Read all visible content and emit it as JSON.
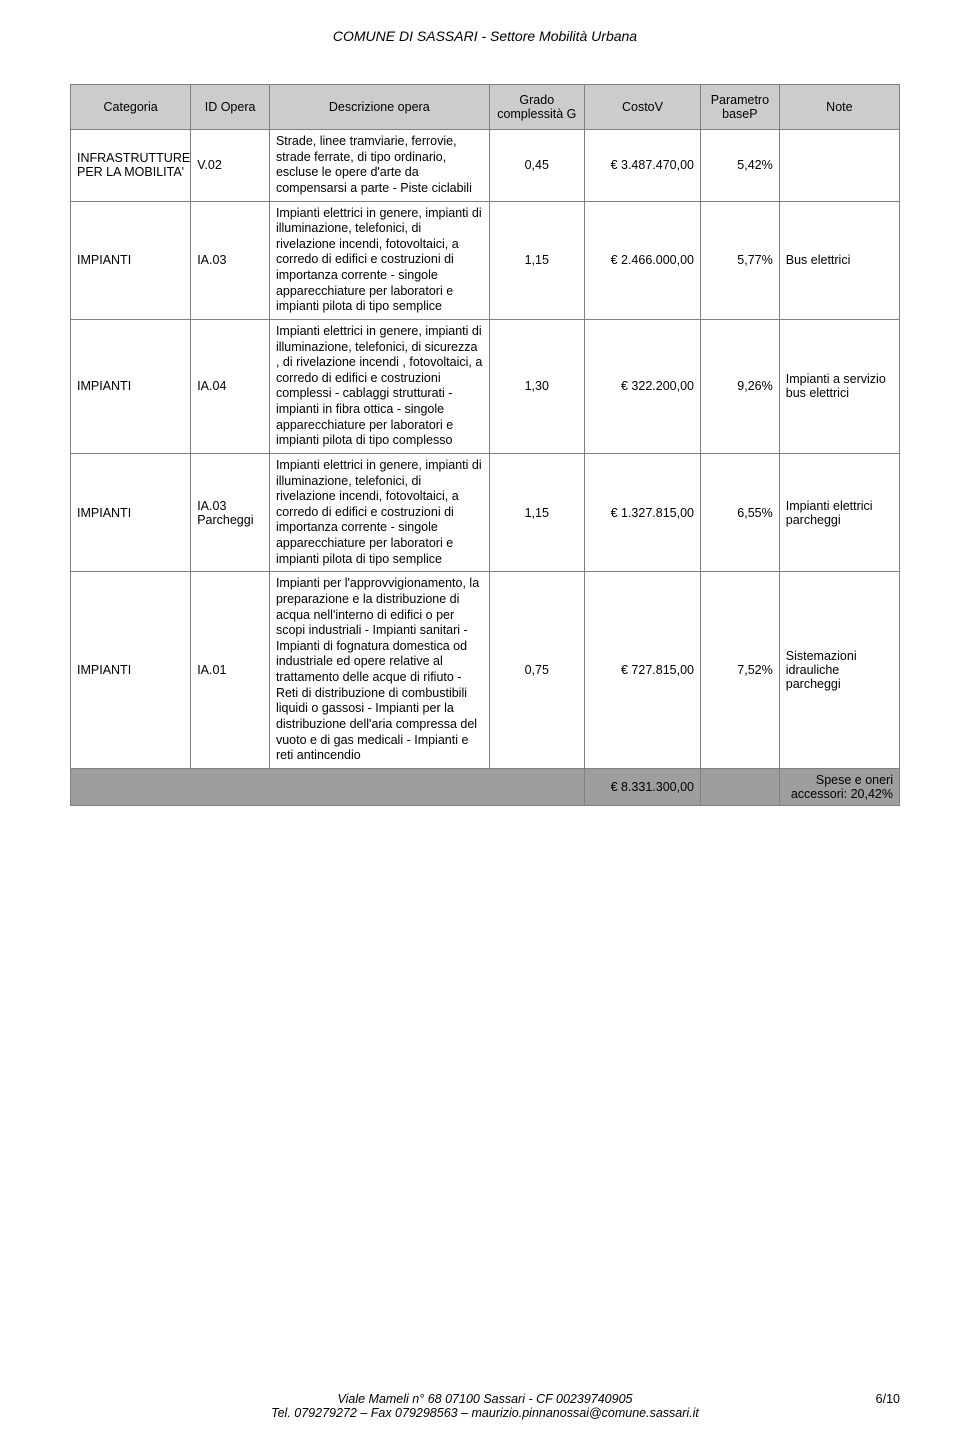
{
  "header": {
    "title": "COMUNE DI SASSARI - Settore Mobilità Urbana"
  },
  "table": {
    "columns": [
      "Categoria",
      "ID Opera",
      "Descrizione opera",
      "Grado complessità G",
      "CostoV",
      "Parametro baseP",
      "Note"
    ],
    "rows": [
      {
        "categoria": "INFRASTRUTTURE PER LA MOBILITA'",
        "id": "V.02",
        "desc": "Strade, linee tramviarie, ferrovie, strade ferrate, di tipo ordinario, escluse le opere d'arte da compensarsi a parte - Piste ciclabili",
        "g": "0,45",
        "costo": "€ 3.487.470,00",
        "basep": "5,42%",
        "note": ""
      },
      {
        "categoria": "IMPIANTI",
        "id": "IA.03",
        "desc": "Impianti elettrici in genere, impianti di illuminazione, telefonici, di rivelazione incendi, fotovoltaici, a corredo di edifici e costruzioni di importanza corrente - singole apparecchiature per laboratori e impianti pilota di tipo semplice",
        "g": "1,15",
        "costo": "€ 2.466.000,00",
        "basep": "5,77%",
        "note": "Bus elettrici"
      },
      {
        "categoria": "IMPIANTI",
        "id": "IA.04",
        "desc": "Impianti elettrici in genere, impianti di illuminazione, telefonici, di sicurezza , di rivelazione incendi , fotovoltaici, a corredo di edifici e costruzioni complessi - cablaggi strutturati - impianti in fibra ottica -  singole apparecchiature per laboratori e impianti pilota di tipo complesso",
        "g": "1,30",
        "costo": "€ 322.200,00",
        "basep": "9,26%",
        "note": "Impianti a servizio bus elettrici"
      },
      {
        "categoria": "IMPIANTI",
        "id": "IA.03 Parcheggi",
        "desc": "Impianti elettrici in genere, impianti di illuminazione, telefonici, di rivelazione incendi, fotovoltaici, a corredo di edifici e costruzioni di importanza corrente - singole apparecchiature per laboratori e impianti pilota di tipo semplice",
        "g": "1,15",
        "costo": "€ 1.327.815,00",
        "basep": "6,55%",
        "note": "Impianti elettrici parcheggi"
      },
      {
        "categoria": "IMPIANTI",
        "id": "IA.01",
        "desc": "Impianti  per l'approvvigionamento, la preparazione e la distribuzione di acqua nell'interno di edifici o per scopi industriali - Impianti sanitari - Impianti di fognatura domestica od industriale ed opere relative al trattamento delle acque di rifiuto - Reti di distribuzione di combustibili liquidi o gassosi - Impianti per la distribuzione dell'aria compressa del vuoto e di gas medicali - Impianti e reti antincendio",
        "g": "0,75",
        "costo": "€ 727.815,00",
        "basep": "7,52%",
        "note": "Sistemazioni idrauliche parcheggi"
      }
    ],
    "total": {
      "costo": "€ 8.331.300,00",
      "note": "Spese e oneri accessori: 20,42%"
    }
  },
  "footer": {
    "line1": "Viale Mameli n° 68 07100 Sassari - CF 00239740905",
    "line2": "Tel. 079279272 – Fax 079298563 – maurizio.pinnanossai@comune.sassari.it",
    "pagenum": "6/10"
  }
}
